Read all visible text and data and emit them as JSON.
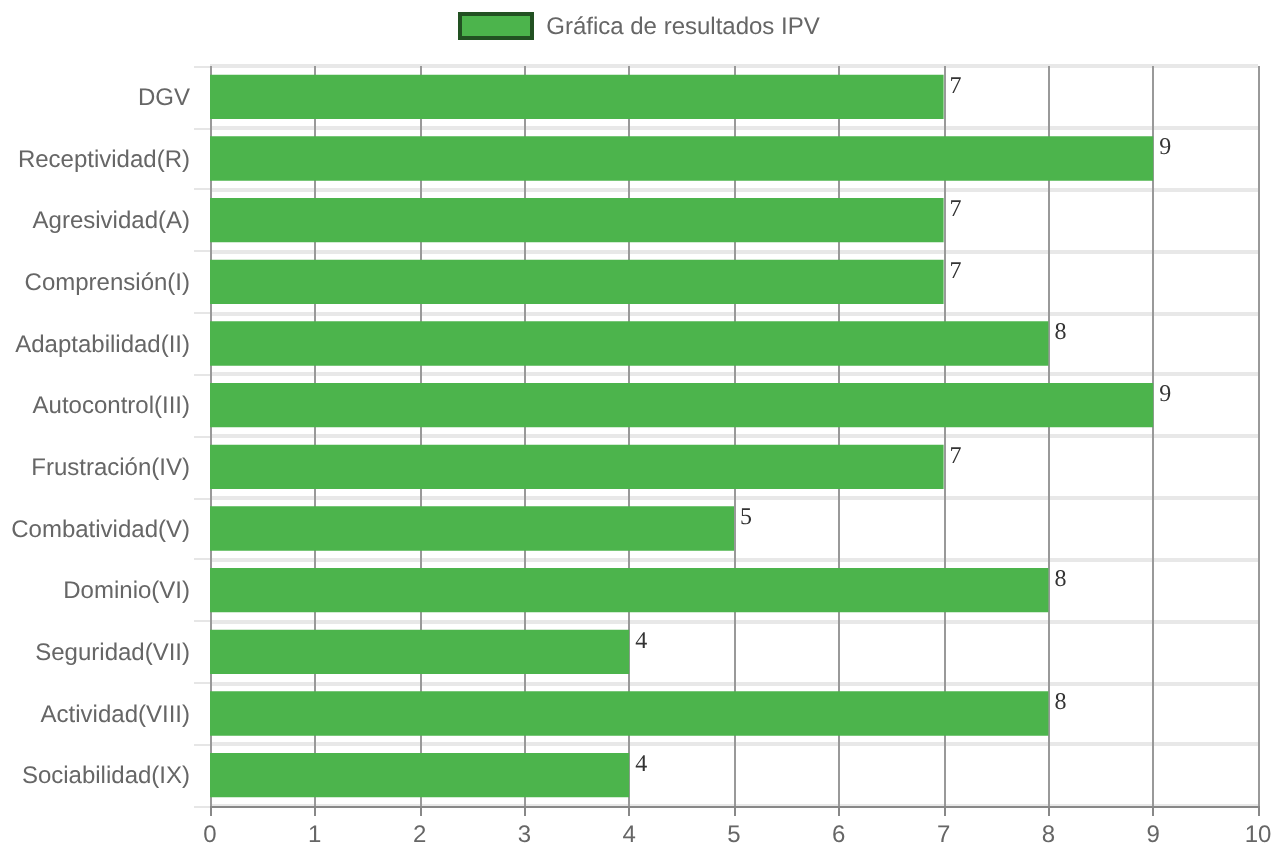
{
  "chart_data": {
    "type": "bar",
    "orientation": "horizontal",
    "categories": [
      "DGV",
      "Receptividad(R)",
      "Agresividad(A)",
      "Comprensión(I)",
      "Adaptabilidad(II)",
      "Autocontrol(III)",
      "Frustración(IV)",
      "Combatividad(V)",
      "Dominio(VI)",
      "Seguridad(VII)",
      "Actividad(VIII)",
      "Sociabilidad(IX)"
    ],
    "series": [
      {
        "name": "Gráfica de resultados IPV",
        "color": "#4cb44c",
        "values": [
          7,
          9,
          7,
          7,
          8,
          9,
          7,
          5,
          8,
          4,
          8,
          4
        ]
      }
    ],
    "xlim": [
      0,
      10
    ],
    "xticks": [
      0,
      1,
      2,
      3,
      4,
      5,
      6,
      7,
      8,
      9,
      10
    ],
    "grid": true,
    "legend": "top",
    "data_labels": true
  }
}
